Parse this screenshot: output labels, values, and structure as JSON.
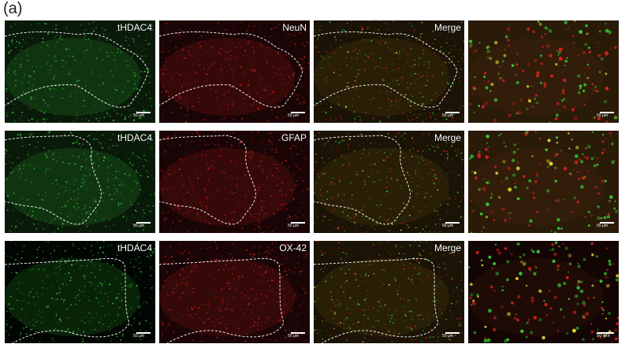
{
  "figure_label": "(a)",
  "rows": [
    {
      "panels": [
        {
          "label": "tHDAC4",
          "scale": "50 μm",
          "stain": "green"
        },
        {
          "label": "NeuN",
          "scale": "50 μm",
          "stain": "red"
        },
        {
          "label": "Merge",
          "scale": "50 μm",
          "stain": "merge"
        },
        {
          "label": "",
          "scale": "50 μm",
          "stain": "zoom"
        }
      ]
    },
    {
      "panels": [
        {
          "label": "tHDAC4",
          "scale": "50 μm",
          "stain": "green"
        },
        {
          "label": "GFAP",
          "scale": "50 μm",
          "stain": "red"
        },
        {
          "label": "Merge",
          "scale": "50 μm",
          "stain": "merge"
        },
        {
          "label": "",
          "scale": "50 μm",
          "stain": "zoom"
        }
      ]
    },
    {
      "panels": [
        {
          "label": "tHDAC4",
          "scale": "50 μm",
          "stain": "green"
        },
        {
          "label": "OX-42",
          "scale": "50 μm",
          "stain": "red"
        },
        {
          "label": "Merge",
          "scale": "50 μm",
          "stain": "merge"
        },
        {
          "label": "",
          "scale": "50 μm",
          "stain": "zoom"
        }
      ]
    }
  ],
  "colors": {
    "green": "#37d43a",
    "red": "#e0231e",
    "yellow": "#e6e23a",
    "background": "#000000"
  }
}
